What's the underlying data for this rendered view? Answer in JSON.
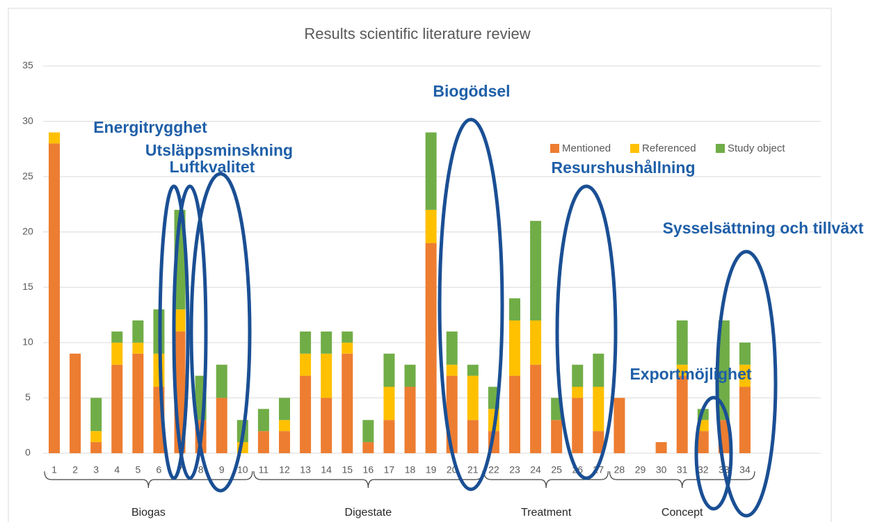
{
  "chart_data": {
    "type": "bar",
    "stacked": true,
    "title": "Results scientific literature review",
    "categories": [
      "1",
      "2",
      "3",
      "4",
      "5",
      "6",
      "7",
      "8",
      "9",
      "10",
      "11",
      "12",
      "13",
      "14",
      "15",
      "16",
      "17",
      "18",
      "19",
      "20",
      "21",
      "22",
      "23",
      "24",
      "25",
      "26",
      "27",
      "28",
      "29",
      "30",
      "31",
      "32",
      "33",
      "34"
    ],
    "series": [
      {
        "name": "Mentioned",
        "color": "#ed7d31",
        "values": [
          28,
          9,
          1,
          8,
          9,
          6,
          11,
          3,
          5,
          0,
          2,
          2,
          7,
          5,
          9,
          1,
          3,
          6,
          19,
          7,
          3,
          2,
          7,
          8,
          3,
          5,
          2,
          5,
          0,
          1,
          7,
          2,
          3,
          6
        ]
      },
      {
        "name": "Referenced",
        "color": "#ffc000",
        "values": [
          1,
          0,
          1,
          2,
          1,
          3,
          2,
          0,
          0,
          1,
          0,
          1,
          2,
          4,
          1,
          0,
          3,
          0,
          3,
          1,
          4,
          2,
          5,
          4,
          0,
          1,
          4,
          0,
          0,
          0,
          1,
          1,
          0,
          2
        ]
      },
      {
        "name": "Study object",
        "color": "#70ad47",
        "values": [
          0,
          0,
          3,
          1,
          2,
          4,
          9,
          4,
          3,
          2,
          2,
          2,
          2,
          2,
          1,
          2,
          3,
          2,
          7,
          3,
          1,
          2,
          2,
          9,
          2,
          2,
          3,
          0,
          0,
          0,
          4,
          1,
          9,
          2
        ]
      }
    ],
    "ylim": [
      0,
      35
    ],
    "yticks": [
      0,
      5,
      10,
      15,
      20,
      25,
      30,
      35
    ],
    "grid": true,
    "legend": "top-right",
    "groups": [
      "Biogas",
      "Digestate",
      "Treatment",
      "Concept"
    ],
    "annotations": [
      "Energitrygghet",
      "Utsläppsminskning",
      "Luftkvalitet",
      "Biogödsel",
      "Resurshushållning",
      "Sysselsättning och tillväxt",
      "Exportmöjlighet"
    ]
  }
}
